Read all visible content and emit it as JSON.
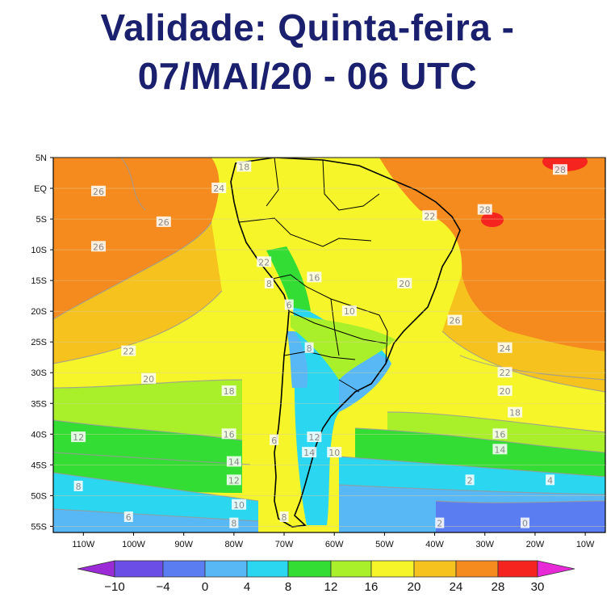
{
  "title": {
    "line1": "Validade: Quinta-feira -",
    "line2": "07/MAI/20 - 06 UTC"
  },
  "map": {
    "lat_labels": [
      "5N",
      "EQ",
      "5S",
      "10S",
      "15S",
      "20S",
      "25S",
      "30S",
      "35S",
      "40S",
      "45S",
      "50S",
      "55S"
    ],
    "lon_labels": [
      "110W",
      "100W",
      "90W",
      "80W",
      "70W",
      "60W",
      "50W",
      "40W",
      "30W",
      "20W",
      "10W"
    ],
    "contour_labels": [
      {
        "text": "26",
        "lon": -107,
        "lat": -0.5
      },
      {
        "text": "24",
        "lon": -83,
        "lat": 0
      },
      {
        "text": "26",
        "lon": -94,
        "lat": -5.5
      },
      {
        "text": "26",
        "lon": -107,
        "lat": -9.5
      },
      {
        "text": "18",
        "lon": -78,
        "lat": 3.5
      },
      {
        "text": "22",
        "lon": -74,
        "lat": -12
      },
      {
        "text": "28",
        "lon": -15,
        "lat": 3
      },
      {
        "text": "28",
        "lon": -30,
        "lat": -3.5
      },
      {
        "text": "22",
        "lon": -41,
        "lat": -4.5
      },
      {
        "text": "8",
        "lon": -73,
        "lat": -15.5
      },
      {
        "text": "16",
        "lon": -64,
        "lat": -14.5
      },
      {
        "text": "20",
        "lon": -46,
        "lat": -15.5
      },
      {
        "text": "6",
        "lon": -69,
        "lat": -19
      },
      {
        "text": "10",
        "lon": -57,
        "lat": -20
      },
      {
        "text": "26",
        "lon": -36,
        "lat": -21.5
      },
      {
        "text": "22",
        "lon": -101,
        "lat": -26.5
      },
      {
        "text": "8",
        "lon": -65,
        "lat": -26
      },
      {
        "text": "24",
        "lon": -26,
        "lat": -26
      },
      {
        "text": "22",
        "lon": -26,
        "lat": -30
      },
      {
        "text": "20",
        "lon": -97,
        "lat": -31
      },
      {
        "text": "18",
        "lon": -81,
        "lat": -33
      },
      {
        "text": "20",
        "lon": -26,
        "lat": -33
      },
      {
        "text": "18",
        "lon": -24,
        "lat": -36.5
      },
      {
        "text": "12",
        "lon": -111,
        "lat": -40.5
      },
      {
        "text": "16",
        "lon": -81,
        "lat": -40
      },
      {
        "text": "6",
        "lon": -72,
        "lat": -41
      },
      {
        "text": "12",
        "lon": -64,
        "lat": -40.5
      },
      {
        "text": "14",
        "lon": -65,
        "lat": -43
      },
      {
        "text": "10",
        "lon": -60,
        "lat": -43
      },
      {
        "text": "16",
        "lon": -27,
        "lat": -40
      },
      {
        "text": "14",
        "lon": -27,
        "lat": -42.5
      },
      {
        "text": "14",
        "lon": -80,
        "lat": -44.5
      },
      {
        "text": "12",
        "lon": -80,
        "lat": -47.5
      },
      {
        "text": "8",
        "lon": -111,
        "lat": -48.5
      },
      {
        "text": "2",
        "lon": -33,
        "lat": -47.5
      },
      {
        "text": "4",
        "lon": -17,
        "lat": -47.5
      },
      {
        "text": "10",
        "lon": -79,
        "lat": -51.5
      },
      {
        "text": "6",
        "lon": -101,
        "lat": -53.5
      },
      {
        "text": "2",
        "lon": -39,
        "lat": -54.5
      },
      {
        "text": "0",
        "lon": -22,
        "lat": -54.5
      },
      {
        "text": "8",
        "lon": -80,
        "lat": -54.5
      },
      {
        "text": "8",
        "lon": -70,
        "lat": -53.5
      }
    ]
  },
  "colorbar": {
    "ticks": [
      "−10",
      "−4",
      "0",
      "4",
      "8",
      "12",
      "16",
      "20",
      "24",
      "28",
      "30"
    ],
    "colors": [
      "#9a2bd6",
      "#6a4ee6",
      "#5a7ef2",
      "#57b8f5",
      "#2ad6f0",
      "#33dd33",
      "#aaf02a",
      "#f5f52a",
      "#f5c21e",
      "#f58b1e",
      "#f5241e"
    ]
  }
}
